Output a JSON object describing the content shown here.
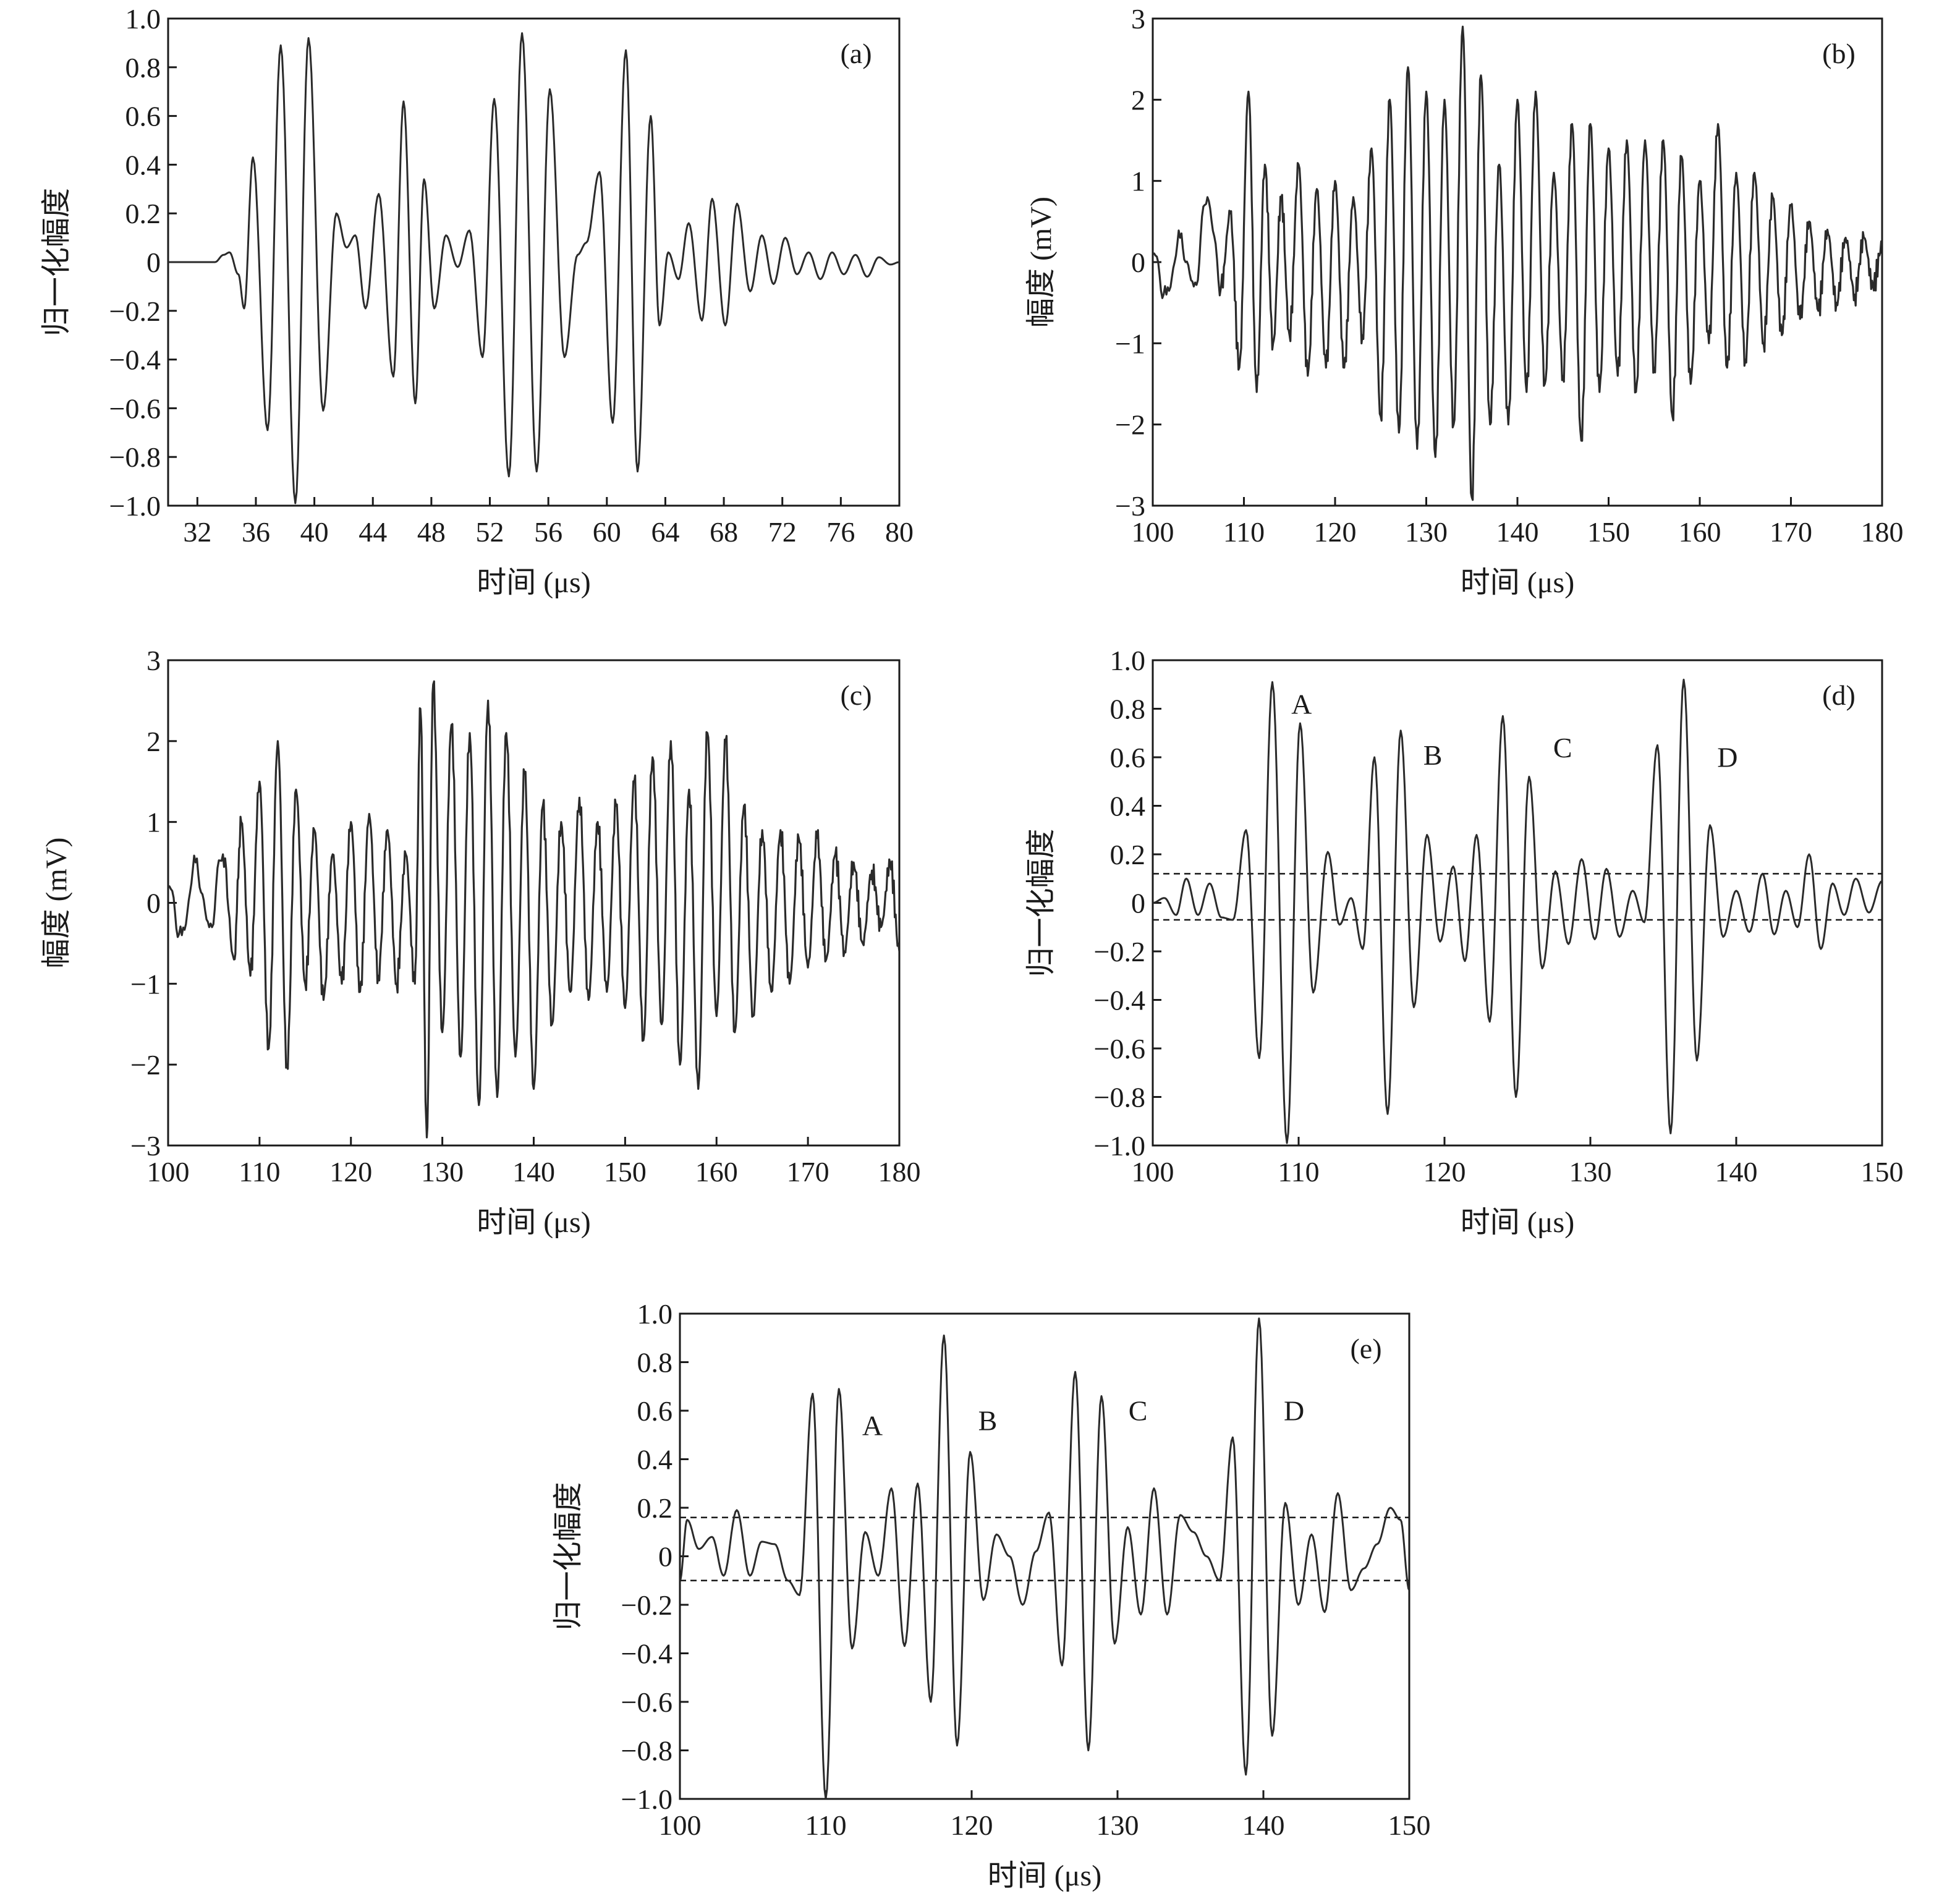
{
  "figure": {
    "colors": {
      "line": "#2a2a2a",
      "axis": "#1a1a1a",
      "background": "#ffffff"
    }
  },
  "chart_data": [
    {
      "id": "a",
      "type": "line",
      "panel_label": "(a)",
      "xlabel": "时间 (μs)",
      "ylabel": "归一化幅度",
      "xlim": [
        30,
        80
      ],
      "ylim": [
        -1.0,
        1.0
      ],
      "xticks": [
        32,
        36,
        40,
        44,
        48,
        52,
        56,
        60,
        64,
        68,
        72,
        76,
        80
      ],
      "xtick_labels": [
        "32",
        "36",
        "40",
        "44",
        "48",
        "52",
        "56",
        "60",
        "64",
        "68",
        "72",
        "76",
        "80"
      ],
      "yticks": [
        -1.0,
        -0.8,
        -0.6,
        -0.4,
        -0.2,
        0,
        0.2,
        0.4,
        0.6,
        0.8,
        1.0
      ],
      "ytick_labels": [
        "−1.0",
        "−0.8",
        "−0.6",
        "−0.4",
        "−0.2",
        "0",
        "0.2",
        "0.4",
        "0.6",
        "0.8",
        "1.0"
      ],
      "grid": false,
      "series": [
        {
          "x": [
            30,
            33.2,
            33.8,
            34.2,
            34.8,
            35.2,
            35.8,
            36.8,
            37.7,
            38.7,
            39.6,
            40.6,
            41.5,
            42.2,
            42.8,
            43.5,
            44.4,
            45.4,
            46.1,
            46.9,
            47.5,
            48.2,
            49.0,
            49.8,
            50.6,
            51.5,
            52.3,
            53.3,
            54.2,
            55.2,
            56.1,
            57.1,
            58.0,
            58.6,
            59.5,
            60.4,
            61.3,
            62.1,
            63.0,
            63.6,
            64.2,
            64.9,
            65.6,
            66.5,
            67.2,
            68.1,
            68.9,
            69.8,
            70.6,
            71.4,
            72.2,
            73.0,
            73.8,
            74.6,
            75.4,
            76.2,
            77.0,
            77.8,
            78.6,
            79.4,
            80
          ],
          "y": [
            0,
            0,
            0.03,
            0.04,
            -0.05,
            -0.19,
            0.43,
            -0.69,
            0.89,
            -0.99,
            0.92,
            -0.61,
            0.2,
            0.06,
            0.11,
            -0.19,
            0.28,
            -0.47,
            0.66,
            -0.58,
            0.34,
            -0.19,
            0.11,
            -0.02,
            0.13,
            -0.39,
            0.67,
            -0.88,
            0.94,
            -0.86,
            0.71,
            -0.39,
            0.03,
            0.08,
            0.37,
            -0.66,
            0.87,
            -0.86,
            0.6,
            -0.26,
            0.04,
            -0.07,
            0.16,
            -0.24,
            0.26,
            -0.26,
            0.24,
            -0.12,
            0.11,
            -0.09,
            0.1,
            -0.05,
            0.04,
            -0.07,
            0.04,
            -0.05,
            0.03,
            -0.06,
            0.02,
            -0.01,
            0.0
          ]
        }
      ]
    },
    {
      "id": "b",
      "type": "line",
      "panel_label": "(b)",
      "xlabel": "时间 (μs)",
      "ylabel": "幅度 (mV)",
      "xlim": [
        100,
        180
      ],
      "ylim": [
        -3,
        3
      ],
      "xticks": [
        100,
        110,
        120,
        130,
        140,
        150,
        160,
        170,
        180
      ],
      "xtick_labels": [
        "100",
        "110",
        "120",
        "130",
        "140",
        "150",
        "160",
        "170",
        "180"
      ],
      "yticks": [
        -3,
        -2,
        -1,
        0,
        1,
        2,
        3
      ],
      "ytick_labels": [
        "−3",
        "−2",
        "−1",
        "0",
        "1",
        "2",
        "3"
      ],
      "grid": false,
      "series": [
        {
          "x": [
            100,
            101.5,
            103,
            104.5,
            106,
            107.5,
            108.5,
            109.5,
            110.5,
            111.4,
            112.3,
            113.2,
            114.1,
            115.0,
            116.0,
            117.0,
            118.0,
            119.0,
            120.0,
            121.0,
            122.0,
            123.0,
            124.0,
            125.0,
            126.0,
            127.0,
            128.0,
            129.0,
            130.0,
            131.0,
            132.0,
            133.0,
            134.0,
            135.0,
            136.0,
            137.0,
            138.0,
            139.0,
            140.0,
            141.0,
            142.0,
            143.0,
            144.0,
            145.0,
            146.0,
            147.0,
            148.0,
            149.0,
            150.0,
            151.0,
            152.0,
            153.0,
            154.0,
            155.0,
            156.0,
            157.0,
            158.0,
            159.0,
            160.0,
            161.0,
            162.0,
            163.0,
            164.0,
            165.0,
            166.0,
            167.0,
            168.0,
            169.0,
            170.0,
            171.0,
            172.0,
            173.0,
            174.0,
            175.0,
            176.0,
            177.0,
            178.0,
            179.0,
            180
          ],
          "y": [
            0.1,
            -0.4,
            0.3,
            -0.3,
            0.8,
            -0.3,
            0.6,
            -1.3,
            2.1,
            -1.6,
            1.2,
            -1.0,
            0.8,
            -0.9,
            1.2,
            -1.4,
            0.9,
            -1.3,
            1.0,
            -1.3,
            0.8,
            -0.9,
            1.4,
            -1.9,
            2.0,
            -2.1,
            2.4,
            -2.3,
            2.1,
            -2.4,
            2.0,
            -2.0,
            2.9,
            -2.9,
            2.3,
            -2.0,
            1.2,
            -2.0,
            2.0,
            -1.6,
            2.1,
            -1.5,
            1.1,
            -1.4,
            1.7,
            -2.2,
            1.7,
            -1.6,
            1.4,
            -1.4,
            1.5,
            -1.6,
            1.5,
            -1.3,
            1.5,
            -1.9,
            1.3,
            -1.5,
            1.0,
            -1.0,
            1.7,
            -1.3,
            1.1,
            -1.2,
            1.1,
            -1.0,
            0.8,
            -0.9,
            0.7,
            -0.7,
            0.5,
            -0.6,
            0.4,
            -0.5,
            0.3,
            -0.4,
            0.3,
            -0.3,
            0.2
          ]
        }
      ]
    },
    {
      "id": "c",
      "type": "line",
      "panel_label": "(c)",
      "xlabel": "时间 (μs)",
      "ylabel": "幅度 (mV)",
      "xlim": [
        100,
        180
      ],
      "ylim": [
        -3,
        3
      ],
      "xticks": [
        100,
        110,
        120,
        130,
        140,
        150,
        160,
        170,
        180
      ],
      "xtick_labels": [
        "100",
        "110",
        "120",
        "130",
        "140",
        "150",
        "160",
        "170",
        "180"
      ],
      "yticks": [
        -3,
        -2,
        -1,
        0,
        1,
        2,
        3
      ],
      "ytick_labels": [
        "−3",
        "−2",
        "−1",
        "0",
        "1",
        "2",
        "3"
      ],
      "grid": false,
      "series": [
        {
          "x": [
            100,
            101.5,
            103,
            104.5,
            106,
            107.2,
            108.0,
            109.0,
            110.0,
            111.0,
            112.0,
            113.0,
            114.0,
            115.0,
            116.0,
            117.0,
            118.0,
            119.0,
            120.0,
            121.0,
            122.0,
            123.0,
            124.0,
            125.0,
            126.0,
            127.0,
            127.6,
            128.3,
            129.0,
            130.0,
            131.0,
            132.0,
            133.0,
            134.0,
            135.0,
            136.0,
            137.0,
            138.0,
            139.0,
            140.0,
            141.0,
            142.0,
            143.0,
            144.0,
            145.0,
            146.0,
            147.0,
            148.0,
            149.0,
            150.0,
            151.0,
            152.0,
            153.0,
            154.0,
            155.0,
            156.0,
            157.0,
            158.0,
            159.0,
            160.0,
            161.0,
            162.0,
            163.0,
            164.0,
            165.0,
            166.0,
            167.0,
            168.0,
            169.0,
            170.0,
            171.0,
            172.0,
            173.0,
            174.0,
            175.0,
            176.0,
            177.0,
            178.0,
            179.0,
            180
          ],
          "y": [
            0.2,
            -0.4,
            0.5,
            -0.3,
            0.6,
            -0.7,
            1.0,
            -0.9,
            1.5,
            -1.8,
            2.0,
            -2.0,
            1.4,
            -1.0,
            0.9,
            -1.2,
            0.6,
            -1.0,
            1.0,
            -1.1,
            1.1,
            -0.9,
            0.9,
            -1.0,
            0.6,
            -1.0,
            2.4,
            -2.9,
            2.7,
            -1.6,
            2.2,
            -1.9,
            2.1,
            -2.5,
            2.5,
            -2.4,
            2.1,
            -1.9,
            1.6,
            -2.3,
            1.2,
            -1.5,
            1.0,
            -1.1,
            1.3,
            -1.2,
            1.0,
            -1.1,
            1.2,
            -1.3,
            1.5,
            -1.7,
            1.8,
            -1.5,
            2.0,
            -2.0,
            1.4,
            -2.3,
            2.1,
            -1.4,
            2.0,
            -1.6,
            1.2,
            -1.4,
            0.9,
            -1.1,
            0.9,
            -1.0,
            0.8,
            -0.8,
            0.8,
            -0.7,
            0.6,
            -0.6,
            0.5,
            -0.5,
            0.4,
            -0.3,
            0.5,
            -0.6
          ]
        }
      ]
    },
    {
      "id": "d",
      "type": "line",
      "panel_label": "(d)",
      "xlabel": "时间 (μs)",
      "ylabel": "归一化幅度",
      "xlim": [
        100,
        150
      ],
      "ylim": [
        -1.0,
        1.0
      ],
      "xticks": [
        100,
        110,
        120,
        130,
        140,
        150
      ],
      "xtick_labels": [
        "100",
        "110",
        "120",
        "130",
        "140",
        "150"
      ],
      "yticks": [
        -1.0,
        -0.8,
        -0.6,
        -0.4,
        -0.2,
        0,
        0.2,
        0.4,
        0.6,
        0.8,
        1.0
      ],
      "ytick_labels": [
        "−1.0",
        "−0.8",
        "−0.6",
        "−0.4",
        "−0.2",
        "0",
        "0.2",
        "0.4",
        "0.6",
        "0.8",
        "1.0"
      ],
      "grid": false,
      "thresholds": [
        0.12,
        -0.07
      ],
      "annotations": [
        {
          "text": "A",
          "x": 110.2,
          "y": 0.78
        },
        {
          "text": "B",
          "x": 119.2,
          "y": 0.57
        },
        {
          "text": "C",
          "x": 128.1,
          "y": 0.6
        },
        {
          "text": "D",
          "x": 139.4,
          "y": 0.56
        }
      ],
      "series": [
        {
          "x": [
            100,
            100.8,
            101.6,
            102.3,
            103.1,
            103.9,
            104.7,
            105.5,
            106.4,
            107.3,
            108.2,
            109.2,
            110.1,
            111.0,
            112.0,
            112.8,
            113.6,
            114.4,
            115.2,
            116.1,
            117.0,
            117.9,
            118.8,
            119.7,
            120.6,
            121.4,
            122.2,
            123.1,
            124.0,
            124.9,
            125.8,
            126.7,
            127.6,
            128.5,
            129.4,
            130.3,
            131.1,
            132.0,
            132.9,
            133.7,
            134.6,
            135.5,
            136.4,
            137.3,
            138.2,
            139.1,
            140.0,
            140.9,
            141.8,
            142.6,
            143.4,
            144.2,
            145.0,
            145.8,
            146.6,
            147.4,
            148.2,
            149.1,
            150
          ],
          "y": [
            0,
            0.02,
            -0.05,
            0.1,
            -0.05,
            0.08,
            -0.06,
            -0.07,
            0.3,
            -0.64,
            0.91,
            -0.99,
            0.74,
            -0.37,
            0.21,
            -0.09,
            0.02,
            -0.19,
            0.6,
            -0.87,
            0.71,
            -0.43,
            0.28,
            -0.16,
            0.15,
            -0.24,
            0.28,
            -0.49,
            0.77,
            -0.8,
            0.52,
            -0.27,
            0.13,
            -0.17,
            0.18,
            -0.15,
            0.14,
            -0.14,
            0.05,
            -0.08,
            0.65,
            -0.95,
            0.92,
            -0.65,
            0.32,
            -0.14,
            0.05,
            -0.12,
            0.12,
            -0.13,
            0.05,
            -0.1,
            0.2,
            -0.19,
            0.08,
            -0.05,
            0.1,
            -0.04,
            0.09
          ]
        }
      ]
    },
    {
      "id": "e",
      "type": "line",
      "panel_label": "(e)",
      "xlabel": "时间 (μs)",
      "ylabel": "归一化幅度",
      "xlim": [
        100,
        150
      ],
      "ylim": [
        -1.0,
        1.0
      ],
      "xticks": [
        100,
        110,
        120,
        130,
        140,
        150
      ],
      "xtick_labels": [
        "100",
        "110",
        "120",
        "130",
        "140",
        "150"
      ],
      "yticks": [
        -1.0,
        -0.8,
        -0.6,
        -0.4,
        -0.2,
        0,
        0.2,
        0.4,
        0.6,
        0.8,
        1.0
      ],
      "ytick_labels": [
        "−1.0",
        "−0.8",
        "−0.6",
        "−0.4",
        "−0.2",
        "0",
        "0.2",
        "0.4",
        "0.6",
        "0.8",
        "1.0"
      ],
      "grid": false,
      "thresholds": [
        0.16,
        -0.1
      ],
      "annotations": [
        {
          "text": "A",
          "x": 113.2,
          "y": 0.5
        },
        {
          "text": "B",
          "x": 121.1,
          "y": 0.52
        },
        {
          "text": "C",
          "x": 131.4,
          "y": 0.56
        },
        {
          "text": "D",
          "x": 142.1,
          "y": 0.56
        }
      ],
      "series": [
        {
          "x": [
            100,
            100.5,
            101.3,
            102.2,
            103.0,
            103.9,
            104.8,
            105.6,
            106.5,
            107.4,
            108.2,
            109.1,
            110.0,
            110.9,
            111.8,
            112.7,
            113.6,
            114.5,
            115.4,
            116.3,
            117.2,
            118.1,
            119.0,
            119.9,
            120.8,
            121.7,
            122.6,
            123.5,
            124.4,
            125.3,
            126.2,
            127.1,
            128.0,
            128.9,
            129.8,
            130.7,
            131.6,
            132.5,
            133.4,
            134.3,
            135.2,
            136.1,
            137.0,
            137.9,
            138.8,
            139.7,
            140.6,
            141.5,
            142.4,
            143.3,
            144.2,
            145.1,
            146.0,
            146.9,
            147.8,
            148.7,
            149.4,
            150
          ],
          "y": [
            -0.1,
            0.15,
            0.03,
            0.08,
            -0.08,
            0.19,
            -0.08,
            0.06,
            0.05,
            -0.1,
            -0.16,
            0.67,
            -1.0,
            0.69,
            -0.38,
            0.1,
            -0.08,
            0.28,
            -0.37,
            0.3,
            -0.6,
            0.91,
            -0.78,
            0.43,
            -0.18,
            0.09,
            0.0,
            -0.2,
            0.02,
            0.18,
            -0.45,
            0.76,
            -0.8,
            0.66,
            -0.36,
            0.12,
            -0.24,
            0.28,
            -0.24,
            0.17,
            0.1,
            0.0,
            -0.1,
            0.49,
            -0.9,
            0.98,
            -0.74,
            0.22,
            -0.2,
            0.09,
            -0.23,
            0.26,
            -0.14,
            -0.05,
            0.05,
            0.2,
            0.15,
            -0.14
          ]
        }
      ]
    }
  ]
}
